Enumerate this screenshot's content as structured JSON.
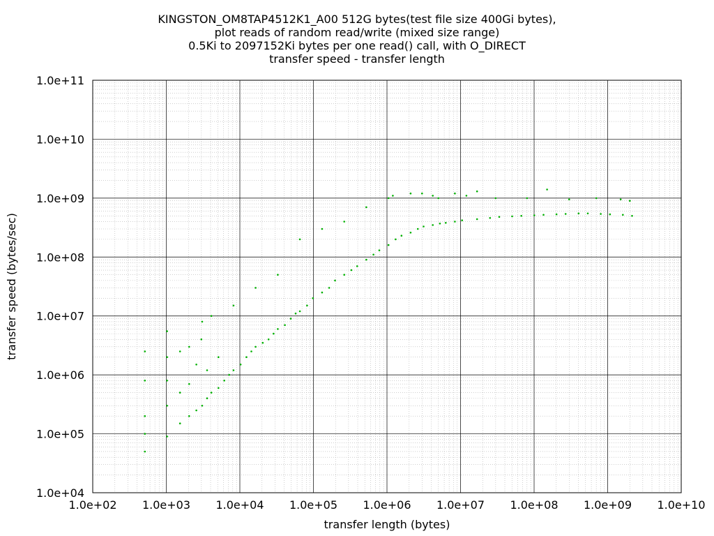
{
  "chart_data": {
    "type": "scatter",
    "title_lines": [
      "KINGSTON_OM8TAP4512K1_A00 512G bytes(test file size 400Gi bytes),",
      "plot reads of random read/write (mixed size range)",
      "0.5Ki to 2097152Ki bytes per one read() call, with O_DIRECT",
      "transfer speed - transfer length"
    ],
    "xlabel": "transfer length (bytes)",
    "ylabel": "transfer speed (bytes/sec)",
    "x_scale": "log",
    "y_scale": "log",
    "xlim": [
      100,
      10000000000
    ],
    "ylim": [
      10000,
      100000000000
    ],
    "x_ticks": [
      "1.0e+02",
      "1.0e+03",
      "1.0e+04",
      "1.0e+05",
      "1.0e+06",
      "1.0e+07",
      "1.0e+08",
      "1.0e+09",
      "1.0e+10"
    ],
    "y_ticks": [
      "1.0e+04",
      "1.0e+05",
      "1.0e+06",
      "1.0e+07",
      "1.0e+08",
      "1.0e+09",
      "1.0e+10",
      "1.0e+11"
    ],
    "grid": true,
    "series_color": "#00b000",
    "series": [
      {
        "x": [
          512,
          512,
          512,
          512,
          512,
          1024,
          1024,
          1024,
          1024,
          1024,
          1536,
          1536,
          1536,
          2048,
          2048,
          2048,
          2560,
          2560,
          3072,
          3072,
          3584,
          3584,
          4096,
          4096,
          5120,
          5120,
          6144,
          7168,
          8192,
          8192,
          10240,
          12288,
          14336,
          16384,
          16384,
          20480,
          24576,
          28672,
          32768,
          32768,
          40960,
          49152,
          57344,
          65536,
          65536,
          81920,
          98304,
          131072,
          131072,
          163840,
          196608,
          262144,
          262144,
          327680,
          393216,
          524288,
          524288,
          655360,
          786432,
          1048576,
          1048576,
          1310720,
          1572864,
          2097152,
          2097152,
          2621440,
          3145728,
          4194304,
          4194304,
          5242880,
          6291456,
          8388608,
          8388608,
          10485760,
          16777216,
          16777216,
          25165824,
          33554432,
          50331648,
          67108864,
          100663296,
          134217728,
          201326592,
          268435456,
          402653184,
          536870912,
          805306368,
          1073741824,
          1610612736,
          2147483648,
          1200000,
          3000000,
          5000000,
          12000000,
          30000000,
          80000000,
          150000000,
          300000000,
          700000000,
          1500000000,
          2000000000,
          3000
        ],
        "y": [
          50000,
          100000,
          200000,
          800000,
          2500000,
          90000,
          300000,
          800000,
          2000000,
          5500000,
          150000,
          500000,
          2500000,
          200000,
          700000,
          3000000,
          250000,
          1500000,
          300000,
          8000000,
          400000,
          1200000,
          500000,
          10000000,
          600000,
          2000000,
          800000,
          1000000,
          1200000,
          15000000,
          1500000,
          2000000,
          2500000,
          3000000,
          30000000,
          3500000,
          4000000,
          5000000,
          6000000,
          50000000,
          7000000,
          9000000,
          11000000,
          12000000,
          200000000,
          15000000,
          20000000,
          25000000,
          300000000,
          30000000,
          40000000,
          50000000,
          400000000,
          60000000,
          70000000,
          90000000,
          700000000,
          110000000,
          130000000,
          160000000,
          1000000000,
          200000000,
          230000000,
          260000000,
          1200000000,
          300000000,
          330000000,
          350000000,
          1100000000,
          370000000,
          380000000,
          400000000,
          1200000000,
          420000000,
          440000000,
          1300000000,
          460000000,
          480000000,
          490000000,
          500000000,
          510000000,
          520000000,
          530000000,
          540000000,
          550000000,
          550000000,
          540000000,
          530000000,
          520000000,
          500000000,
          1100000000,
          1200000000,
          1000000000,
          1100000000,
          1000000000,
          1000000000,
          1400000000,
          950000000,
          1000000000,
          950000000,
          900000000,
          4000000
        ]
      }
    ]
  }
}
